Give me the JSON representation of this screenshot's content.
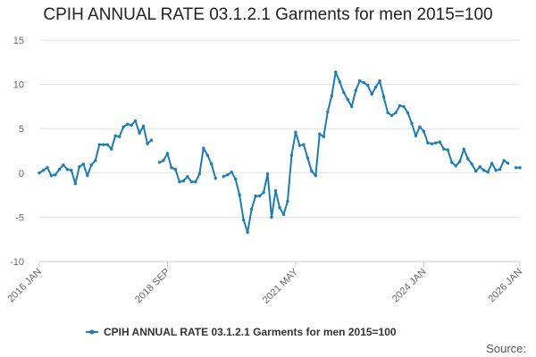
{
  "chart_data": {
    "type": "line",
    "title": "CPIH ANNUAL RATE 03.1.2.1 Garments for men 2015=100",
    "xlabel": "",
    "ylabel": "",
    "ylim": [
      -10,
      15
    ],
    "yticks": [
      15,
      10,
      5,
      0,
      -5,
      -10
    ],
    "x_range": [
      "2016 JAN",
      "2026 JAN"
    ],
    "xticks": [
      {
        "label": "2016 JAN",
        "index": 0
      },
      {
        "label": "2018 SEP",
        "index": 32
      },
      {
        "label": "2021 MAY",
        "index": 64
      },
      {
        "label": "2024 JAN",
        "index": 96
      },
      {
        "label": "2026 JAN",
        "index": 120
      }
    ],
    "legend": "bottom-center",
    "grid": true,
    "series": [
      {
        "name": "CPIH ANNUAL RATE 03.1.2.1 Garments for men 2015=100",
        "color": "#1a7db7",
        "values": [
          0.0,
          0.3,
          0.6,
          -0.3,
          -0.2,
          0.4,
          0.9,
          0.4,
          0.3,
          -1.2,
          0.7,
          1.0,
          -0.3,
          0.9,
          1.4,
          3.2,
          3.2,
          3.2,
          2.7,
          4.2,
          4.1,
          5.2,
          5.5,
          5.4,
          5.9,
          4.5,
          5.3,
          3.3,
          3.7,
          null,
          1.2,
          1.4,
          2.2,
          0.6,
          0.4,
          -1.0,
          -0.9,
          -0.4,
          -1.0,
          -1.0,
          -0.1,
          2.8,
          2.0,
          1.0,
          -0.6,
          null,
          -0.4,
          -0.2,
          0.1,
          -0.7,
          -2.5,
          -5.3,
          -6.7,
          -4.1,
          -2.6,
          -2.6,
          -2.2,
          -0.1,
          -5.0,
          -2.0,
          -3.9,
          -4.7,
          -3.2,
          2.0,
          4.6,
          3.1,
          3.2,
          1.7,
          0.2,
          -0.3,
          4.4,
          4.1,
          6.9,
          8.7,
          11.4,
          10.3,
          9.1,
          8.3,
          7.5,
          9.3,
          10.4,
          10.2,
          9.9,
          8.9,
          9.7,
          10.4,
          8.6,
          6.8,
          6.5,
          6.8,
          7.6,
          7.5,
          6.8,
          5.6,
          4.2,
          5.2,
          4.7,
          3.4,
          3.3,
          3.4,
          3.5,
          2.7,
          2.6,
          1.2,
          0.8,
          1.3,
          2.7,
          1.6,
          1.0,
          0.2,
          0.7,
          0.3,
          0.1,
          1.1,
          0.3,
          0.4,
          1.4,
          1.1,
          null,
          0.6,
          0.6
        ]
      }
    ]
  },
  "source_label": "Source:"
}
